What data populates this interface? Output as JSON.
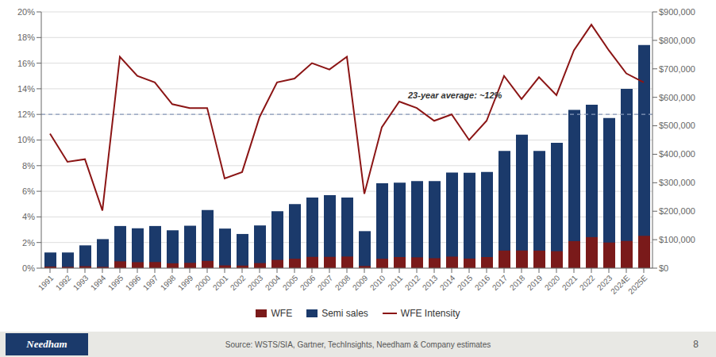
{
  "chart_data": {
    "type": "bar",
    "categories": [
      "1991",
      "1992",
      "1993",
      "1994",
      "1995",
      "1996",
      "1997",
      "1998",
      "1999",
      "2000",
      "2001",
      "2002",
      "2003",
      "2004",
      "2005",
      "2006",
      "2007",
      "2008",
      "2009",
      "2010",
      "2011",
      "2012",
      "2013",
      "2014",
      "2015",
      "2016",
      "2017",
      "2018",
      "2019",
      "2020",
      "2021",
      "2022",
      "2023",
      "2024E",
      "2025E"
    ],
    "series": [
      {
        "name": "WFE",
        "type": "bar",
        "color": "#7a1a1a",
        "axis": "y2",
        "values": [
          5700,
          4600,
          6800,
          4600,
          24000,
          21000,
          21500,
          17000,
          18600,
          25500,
          9700,
          9000,
          17800,
          29000,
          33000,
          39600,
          39700,
          40800,
          7500,
          33000,
          39000,
          38000,
          35000,
          40500,
          33600,
          39000,
          61800,
          62000,
          61600,
          59600,
          95000,
          109000,
          90000,
          95500,
          113500
        ]
      },
      {
        "name": "Semi sales",
        "type": "bar",
        "color": "#1b3a6b",
        "axis": "y2",
        "values": [
          55000,
          55000,
          80000,
          102000,
          148000,
          140000,
          148000,
          133000,
          149000,
          204000,
          139000,
          120000,
          150000,
          200000,
          225000,
          248000,
          256000,
          248000,
          130000,
          298000,
          300000,
          306000,
          306000,
          336000,
          335000,
          338000,
          412000,
          469000,
          412000,
          440000,
          556000,
          574000,
          527000,
          630000,
          784000
        ]
      },
      {
        "name": "WFE Intensity",
        "type": "line",
        "color": "#8b1515",
        "values": [
          10.5,
          8.3,
          8.5,
          4.5,
          16.5,
          15.0,
          14.5,
          12.8,
          12.5,
          12.5,
          7.0,
          7.5,
          11.8,
          14.5,
          14.8,
          16.0,
          15.5,
          16.5,
          5.8,
          11.0,
          13.0,
          12.5,
          11.5,
          12.0,
          10.0,
          11.5,
          15.0,
          13.2,
          14.9,
          13.5,
          17.0,
          19.0,
          17.0,
          15.2,
          14.5
        ]
      }
    ],
    "ylim": [
      0,
      20
    ],
    "yticks": [
      {
        "value": 0,
        "label": "0%"
      },
      {
        "value": 2,
        "label": "2%"
      },
      {
        "value": 4,
        "label": "4%"
      },
      {
        "value": 6,
        "label": "6%"
      },
      {
        "value": 8,
        "label": "8%"
      },
      {
        "value": 10,
        "label": "10%"
      },
      {
        "value": 12,
        "label": "12%"
      },
      {
        "value": 14,
        "label": "14%"
      },
      {
        "value": 16,
        "label": "16%"
      },
      {
        "value": 18,
        "label": "18%"
      },
      {
        "value": 20,
        "label": "20%"
      }
    ],
    "y2lim": [
      0,
      900000
    ],
    "y2ticks": [
      {
        "value": 0,
        "label": "$0"
      },
      {
        "value": 100000,
        "label": "$100,000"
      },
      {
        "value": 200000,
        "label": "$200,000"
      },
      {
        "value": 300000,
        "label": "$300,000"
      },
      {
        "value": 400000,
        "label": "$400,000"
      },
      {
        "value": 500000,
        "label": "$500,000"
      },
      {
        "value": 600000,
        "label": "$600,000"
      },
      {
        "value": 700000,
        "label": "$700,000"
      },
      {
        "value": 800000,
        "label": "$800,000"
      },
      {
        "value": 900000,
        "label": "$900,000"
      }
    ],
    "grid": true,
    "legend": "bottom",
    "average_line": {
      "y": 12.0,
      "color": "#8899bb",
      "line_style": "dashed"
    },
    "annotations": [
      {
        "text": "23-year average: ~12%",
        "y": 13.1
      }
    ],
    "footer": {
      "source": "Source: WSTS/SIA, Gartner, TechInsights, Needham & Company estimates",
      "page_number": "8",
      "logo": "Needham",
      "color": "#e8e8e4",
      "logo_color": "#1b3a6b"
    }
  }
}
